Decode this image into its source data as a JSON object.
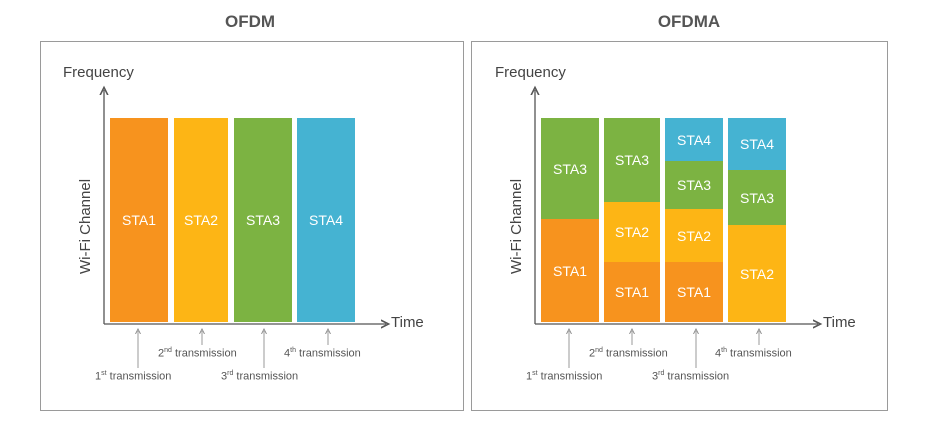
{
  "colors": {
    "orange": "#F7931E",
    "yellow": "#FDB515",
    "green": "#7CB342",
    "blue": "#45B3D2"
  },
  "ofdm": {
    "title": "OFDM",
    "y_axis": "Frequency",
    "x_axis": "Time",
    "channel_label": "Wi-Fi Channel",
    "blocks": [
      "STA1",
      "STA2",
      "STA3",
      "STA4"
    ],
    "transmissions": [
      {
        "num": "1",
        "sup": "st",
        "text": " transmission"
      },
      {
        "num": "2",
        "sup": "nd",
        "text": " transmission"
      },
      {
        "num": "3",
        "sup": "rd",
        "text": " transmission"
      },
      {
        "num": "4",
        "sup": "th",
        "text": " transmission"
      }
    ]
  },
  "ofdma": {
    "title": "OFDMA",
    "y_axis": "Frequency",
    "x_axis": "Time",
    "channel_label": "Wi-Fi Channel",
    "columns": [
      {
        "segments": [
          "STA3",
          "STA1"
        ]
      },
      {
        "segments": [
          "STA3",
          "STA2",
          "STA1"
        ]
      },
      {
        "segments": [
          "STA4",
          "STA3",
          "STA2",
          "STA1"
        ]
      },
      {
        "segments": [
          "STA4",
          "STA3",
          "STA2"
        ]
      }
    ],
    "transmissions": [
      {
        "num": "1",
        "sup": "st",
        "text": " transmission"
      },
      {
        "num": "2",
        "sup": "nd",
        "text": " transmission"
      },
      {
        "num": "3",
        "sup": "rd",
        "text": " transmission"
      },
      {
        "num": "4",
        "sup": "th",
        "text": " transmission"
      }
    ]
  }
}
